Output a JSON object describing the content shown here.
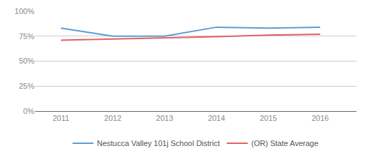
{
  "chart_data": {
    "type": "line",
    "x": [
      2011,
      2012,
      2013,
      2014,
      2015,
      2016
    ],
    "series": [
      {
        "name": "Nestucca Valley 101j School District",
        "color": "#5b9bd5",
        "values": [
          0.83,
          0.75,
          0.75,
          0.84,
          0.83,
          0.84
        ]
      },
      {
        "name": "(OR) State Average",
        "color": "#e06060",
        "values": [
          0.71,
          0.72,
          0.73,
          0.745,
          0.76,
          0.77
        ]
      }
    ],
    "xlim": [
      2010.5,
      2016.7
    ],
    "xticks": [
      2011,
      2012,
      2013,
      2014,
      2015,
      2016
    ],
    "ylim": [
      0,
      1.0
    ],
    "yticks": [
      {
        "value": 0,
        "label": "0%"
      },
      {
        "value": 0.25,
        "label": "25%"
      },
      {
        "value": 0.5,
        "label": "50%"
      },
      {
        "value": 0.75,
        "label": "75%"
      },
      {
        "value": 1.0,
        "label": "100%"
      }
    ],
    "grid": "y",
    "legend": "bottom"
  }
}
